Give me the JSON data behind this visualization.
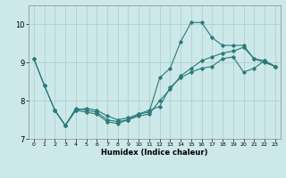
{
  "xlabel": "Humidex (Indice chaleur)",
  "bg_color": "#cce8e8",
  "line_color": "#2a7a7a",
  "grid_color": "#aacccc",
  "xlim": [
    -0.5,
    23.5
  ],
  "ylim": [
    7.0,
    10.5
  ],
  "xticks": [
    0,
    1,
    2,
    3,
    4,
    5,
    6,
    7,
    8,
    9,
    10,
    11,
    12,
    13,
    14,
    15,
    16,
    17,
    18,
    19,
    20,
    21,
    22,
    23
  ],
  "yticks": [
    7,
    8,
    9,
    10
  ],
  "line1_x": [
    0,
    1,
    2,
    3,
    4,
    5,
    6,
    7,
    8,
    9,
    10,
    11,
    12,
    13,
    14,
    15,
    16,
    17,
    18,
    19,
    20,
    21,
    22,
    23
  ],
  "line1_y": [
    9.1,
    8.4,
    7.75,
    7.35,
    7.75,
    7.8,
    7.75,
    7.6,
    7.5,
    7.55,
    7.65,
    7.75,
    7.85,
    8.35,
    8.6,
    8.75,
    8.85,
    8.9,
    9.1,
    9.15,
    8.75,
    8.85,
    9.05,
    8.9
  ],
  "line2_x": [
    0,
    1,
    2,
    3,
    4,
    5,
    6,
    7,
    8,
    9,
    10,
    11,
    12,
    13,
    14,
    15,
    16,
    17,
    18,
    19,
    20,
    21,
    22,
    23
  ],
  "line2_y": [
    9.1,
    8.4,
    7.75,
    7.35,
    7.8,
    7.75,
    7.7,
    7.5,
    7.45,
    7.5,
    7.65,
    7.7,
    8.6,
    8.85,
    9.55,
    10.05,
    10.05,
    9.65,
    9.45,
    9.45,
    9.45,
    9.1,
    9.05,
    8.9
  ],
  "line3_x": [
    2,
    3,
    4,
    5,
    6,
    7,
    8,
    9,
    10,
    11,
    12,
    13,
    14,
    15,
    16,
    17,
    18,
    19,
    20,
    21,
    22,
    23
  ],
  "line3_y": [
    7.75,
    7.35,
    7.75,
    7.7,
    7.65,
    7.45,
    7.4,
    7.5,
    7.6,
    7.65,
    8.0,
    8.3,
    8.65,
    8.85,
    9.05,
    9.15,
    9.25,
    9.3,
    9.4,
    9.1,
    9.0,
    8.9
  ]
}
